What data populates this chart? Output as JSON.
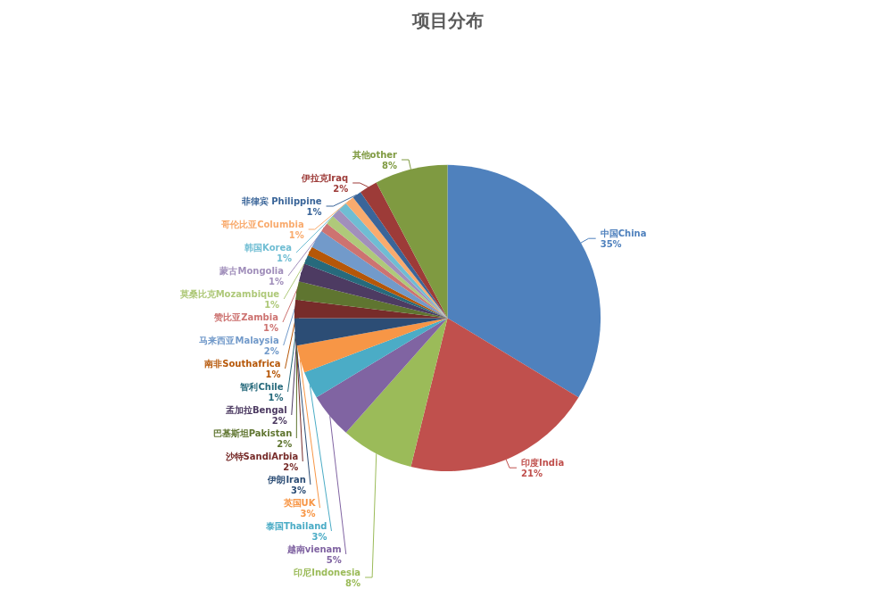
{
  "chart_data": {
    "type": "pie",
    "title": "项目分布",
    "categories": [
      "中国China",
      "印度India",
      "印尼Indonesia",
      "越南vienam",
      "泰国Thailand",
      "英国UK",
      "伊朗Iran",
      "沙特SandiArbia",
      "巴基斯坦Pakistan",
      "孟加拉Bengal",
      "智利Chile",
      "南非Southafrica",
      "马来西亚Malaysia",
      "赞比亚Zambia",
      "莫桑比克Mozambique",
      "蒙古Mongolia",
      "韩国Korea",
      "哥伦比亚Columbia",
      "菲律宾 Philippine",
      "伊拉克Iraq",
      "其他other"
    ],
    "values": [
      35,
      21,
      8,
      5,
      3,
      3,
      3,
      2,
      2,
      2,
      1,
      1,
      2,
      1,
      1,
      1,
      1,
      1,
      1,
      2,
      8
    ],
    "value_labels": [
      "35%",
      "21%",
      "8%",
      "5%",
      "3%",
      "3%",
      "3%",
      "2%",
      "2%",
      "2%",
      "1%",
      "1%",
      "2%",
      "1%",
      "1%",
      "1%",
      "1%",
      "1%",
      "1%",
      "2%",
      "8%"
    ],
    "colors": [
      "#4f81bd",
      "#c0504d",
      "#9bbb59",
      "#8064a2",
      "#4bacc6",
      "#f79646",
      "#2c4d75",
      "#772c2a",
      "#5f7530",
      "#4d3b62",
      "#276a7c",
      "#b65708",
      "#729aca",
      "#cd7371",
      "#afc97a",
      "#a18fbb",
      "#6fbdd3",
      "#f9ab6e",
      "#3a6599",
      "#9d3b38",
      "#7f9a41"
    ],
    "legend": false
  }
}
